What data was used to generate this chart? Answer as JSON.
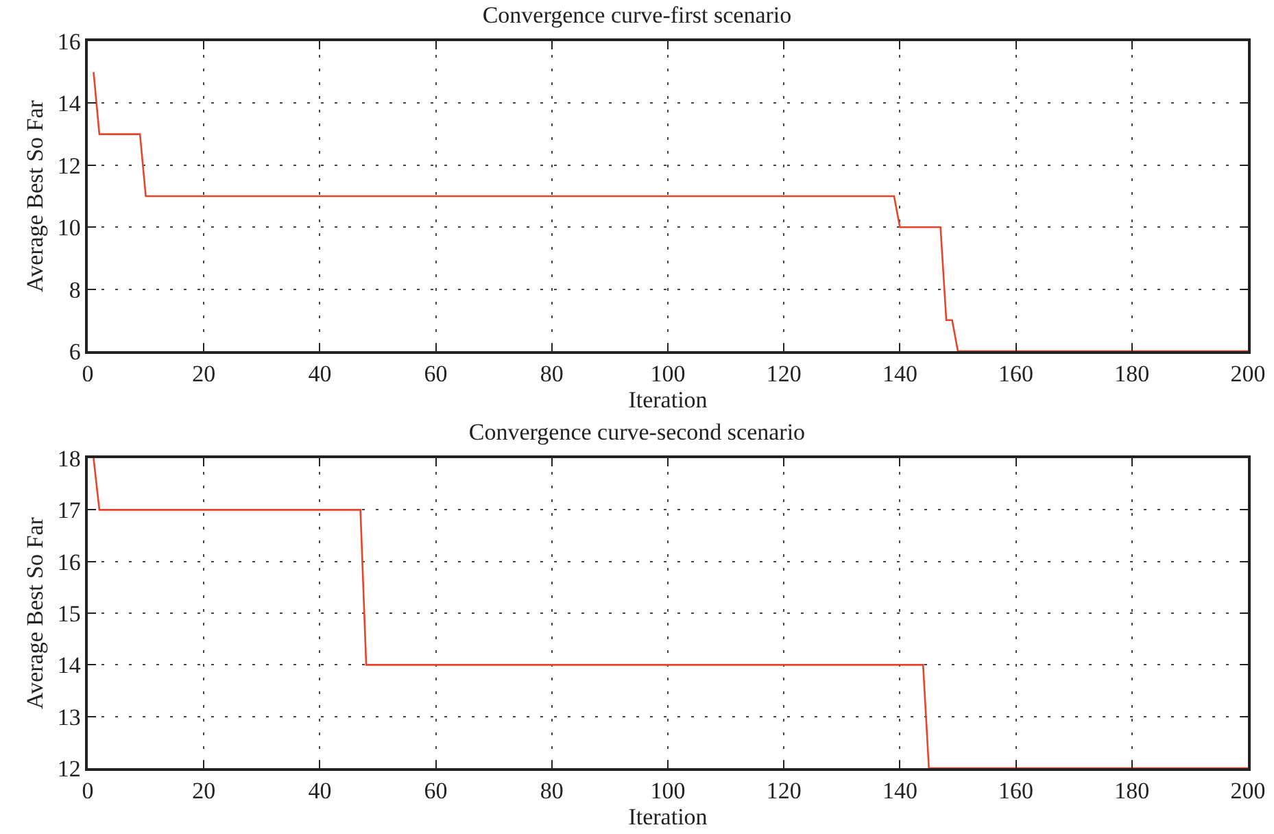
{
  "chart_data": [
    {
      "type": "line",
      "title": "Convergence curve-first scenario",
      "xlabel": "Iteration",
      "ylabel": "Average Best So Far",
      "x": [
        1,
        2,
        9,
        10,
        139,
        140,
        147,
        148,
        149,
        150,
        200
      ],
      "series": [
        {
          "color": "#e8432b",
          "values": [
            15,
            13,
            13,
            11,
            11,
            10,
            10,
            7,
            7,
            6,
            6
          ]
        }
      ],
      "xlim": [
        0,
        200
      ],
      "xticks": [
        0,
        20,
        40,
        60,
        80,
        100,
        120,
        140,
        160,
        180,
        200
      ],
      "ylim": [
        6,
        16
      ],
      "yticks": [
        6,
        8,
        10,
        12,
        14,
        16
      ],
      "grid": true,
      "marker": "none",
      "line_style": "solid"
    },
    {
      "type": "line",
      "title": "Convergence curve-second scenario",
      "xlabel": "Iteration",
      "ylabel": "Average Best So Far",
      "x": [
        1,
        2,
        47,
        48,
        144,
        145,
        200
      ],
      "series": [
        {
          "color": "#e8432b",
          "values": [
            18,
            17,
            17,
            14,
            14,
            12,
            12
          ]
        }
      ],
      "xlim": [
        0,
        200
      ],
      "xticks": [
        0,
        20,
        40,
        60,
        80,
        100,
        120,
        140,
        160,
        180,
        200
      ],
      "ylim": [
        12,
        18
      ],
      "yticks": [
        12,
        13,
        14,
        15,
        16,
        17,
        18
      ],
      "grid": true,
      "marker": "none",
      "line_style": "solid"
    }
  ]
}
